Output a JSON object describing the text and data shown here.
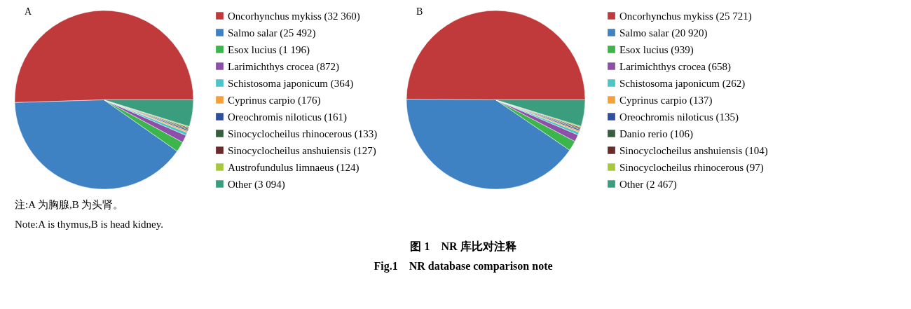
{
  "chart_data": [
    {
      "type": "pie",
      "title": "A",
      "legend": "right",
      "categories": [
        "Oncorhynchus mykiss",
        "Salmo salar",
        "Esox lucius",
        "Larimichthys crocea",
        "Schistosoma japonicum",
        "Cyprinus carpio",
        "Oreochromis niloticus",
        "Sinocyclocheilus rhinocerous",
        "Sinocyclocheilus anshuiensis",
        "Austrofundulus limnaeus",
        "Other"
      ],
      "values": [
        32360,
        25492,
        1196,
        872,
        364,
        176,
        161,
        133,
        127,
        124,
        3094
      ],
      "value_labels": [
        "(32 360)",
        "(25 492)",
        "(1 196)",
        "(872)",
        "(364)",
        "(176)",
        "(161)",
        "(133)",
        "(127)",
        "(124)",
        "(3 094)"
      ],
      "colors": [
        "#c0393b",
        "#3e82c4",
        "#3cb54a",
        "#8e4fa8",
        "#4cc5c8",
        "#f5a03a",
        "#2e4e9e",
        "#355e3b",
        "#6b2b2b",
        "#a8c83c",
        "#3a9e7e"
      ],
      "annotations": [
        "注:A 为胸腺,B 为头肾。",
        "Note:A is thymus,B is head kidney.",
        "图 1　NR 库比对注释",
        "Fig.1　NR database comparison note"
      ]
    },
    {
      "type": "pie",
      "title": "B",
      "legend": "right",
      "categories": [
        "Oncorhynchus mykiss",
        "Salmo salar",
        "Esox lucius",
        "Larimichthys crocea",
        "Schistosoma japonicum",
        "Cyprinus carpio",
        "Oreochromis niloticus",
        "Danio rerio",
        "Sinocyclocheilus anshuiensis",
        "Sinocyclocheilus rhinocerous",
        "Other"
      ],
      "values": [
        25721,
        20920,
        939,
        658,
        262,
        137,
        135,
        106,
        104,
        97,
        2467
      ],
      "value_labels": [
        "(25 721)",
        "(20 920)",
        "(939)",
        "(658)",
        "(262)",
        "(137)",
        "(135)",
        "(106)",
        "(104)",
        "(97)",
        "(2 467)"
      ],
      "colors": [
        "#c0393b",
        "#3e82c4",
        "#3cb54a",
        "#8e4fa8",
        "#4cc5c8",
        "#f5a03a",
        "#2e4e9e",
        "#355e3b",
        "#6b2b2b",
        "#a8c83c",
        "#3a9e7e"
      ]
    }
  ]
}
